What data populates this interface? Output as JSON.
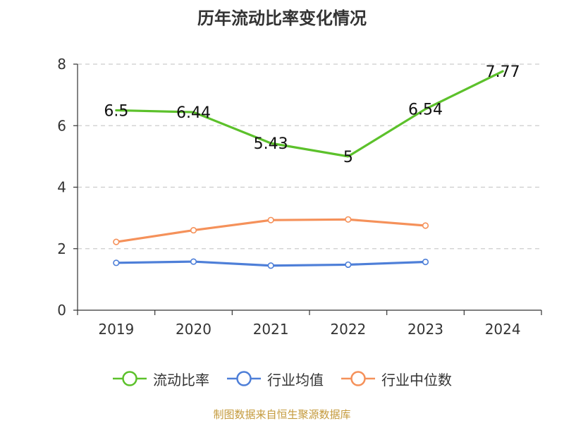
{
  "chart_data": {
    "type": "line",
    "title": "历年流动比率变化情况",
    "categories": [
      "2019",
      "2020",
      "2021",
      "2022",
      "2023",
      "2024"
    ],
    "ylim": [
      0,
      8
    ],
    "yticks": [
      "0",
      "2",
      "4",
      "6",
      "8"
    ],
    "grid": true,
    "legend_position": "bottom",
    "series": [
      {
        "name": "流动比率",
        "color": "#5cc12b",
        "values": [
          6.5,
          6.44,
          5.43,
          5.0,
          6.54,
          7.77
        ],
        "labels": [
          "6.5",
          "6.44",
          "5.43",
          "5",
          "6.54",
          "7.77"
        ]
      },
      {
        "name": "行业均值",
        "color": "#4e7fd8",
        "values": [
          1.54,
          1.58,
          1.45,
          1.48,
          1.57,
          null
        ]
      },
      {
        "name": "行业中位数",
        "color": "#f5915a",
        "values": [
          2.22,
          2.6,
          2.93,
          2.95,
          2.75,
          null
        ]
      }
    ]
  },
  "source": "制图数据来自恒生聚源数据库"
}
